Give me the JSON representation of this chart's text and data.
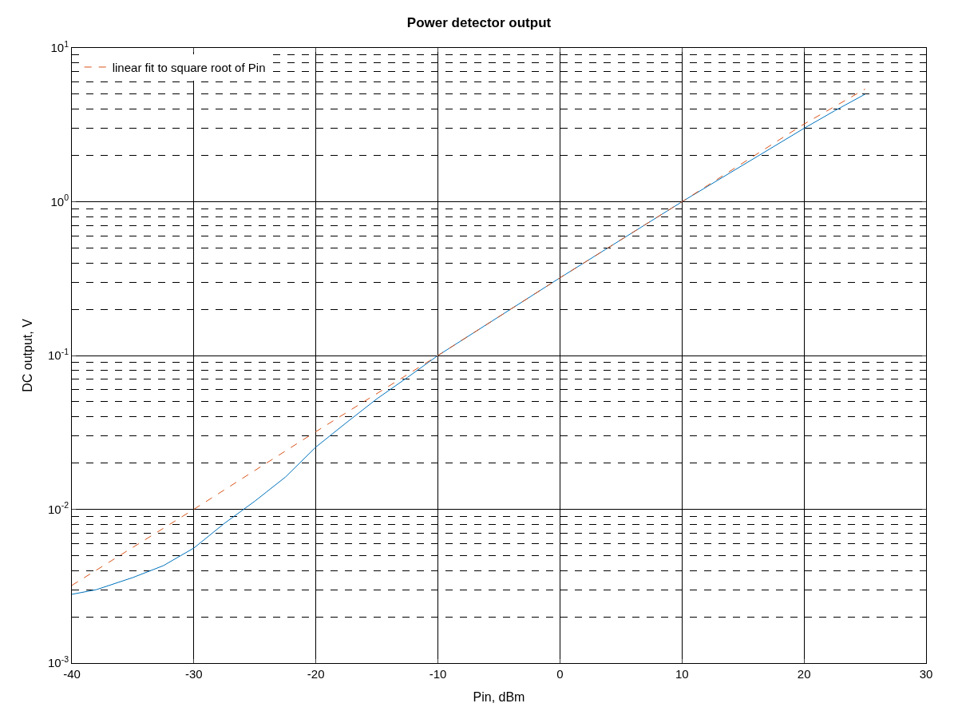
{
  "chart_data": {
    "type": "line",
    "title": "Power detector output",
    "xlabel": "Pin, dBm",
    "ylabel": "DC output, V",
    "log": "y",
    "grid": true,
    "legend": "top left",
    "xlim": [
      -40,
      30
    ],
    "xticks": [
      -40,
      -30,
      -20,
      -10,
      0,
      10,
      20,
      30
    ],
    "ylim": [
      0.001,
      10
    ],
    "yticks": [
      {
        "value": 0.001,
        "label": "10$^{-3}$"
      },
      {
        "value": 0.01,
        "label": "10$^{-2}$"
      },
      {
        "value": 0.1,
        "label": "10$^{-1}$"
      },
      {
        "value": 1,
        "label": "10$^{0}$"
      },
      {
        "value": 10,
        "label": "10$^{1}$"
      }
    ],
    "series": [
      {
        "color": "#0072bd",
        "line_style": "solid",
        "x": [
          -40,
          -38,
          -35,
          -32.5,
          -30,
          -27.5,
          -25,
          -22.5,
          -20,
          -17.5,
          -15,
          -12.5,
          -10,
          0,
          10,
          20,
          22.5,
          25
        ],
        "values": [
          0.0028,
          0.003,
          0.0036,
          0.0043,
          0.0056,
          0.0081,
          0.0113,
          0.0162,
          0.0254,
          0.0366,
          0.0523,
          0.072,
          0.1,
          0.32,
          1.0,
          3.0,
          3.9,
          5.0
        ]
      },
      {
        "name": "linear fit to square root of Pin",
        "color": "#d95319",
        "line_style": "dashed",
        "x": [
          -40,
          -30,
          -20,
          -10,
          0,
          10,
          20,
          25
        ],
        "values": [
          0.0032,
          0.01,
          0.032,
          0.1,
          0.32,
          1.0,
          3.2,
          5.4
        ]
      }
    ]
  }
}
